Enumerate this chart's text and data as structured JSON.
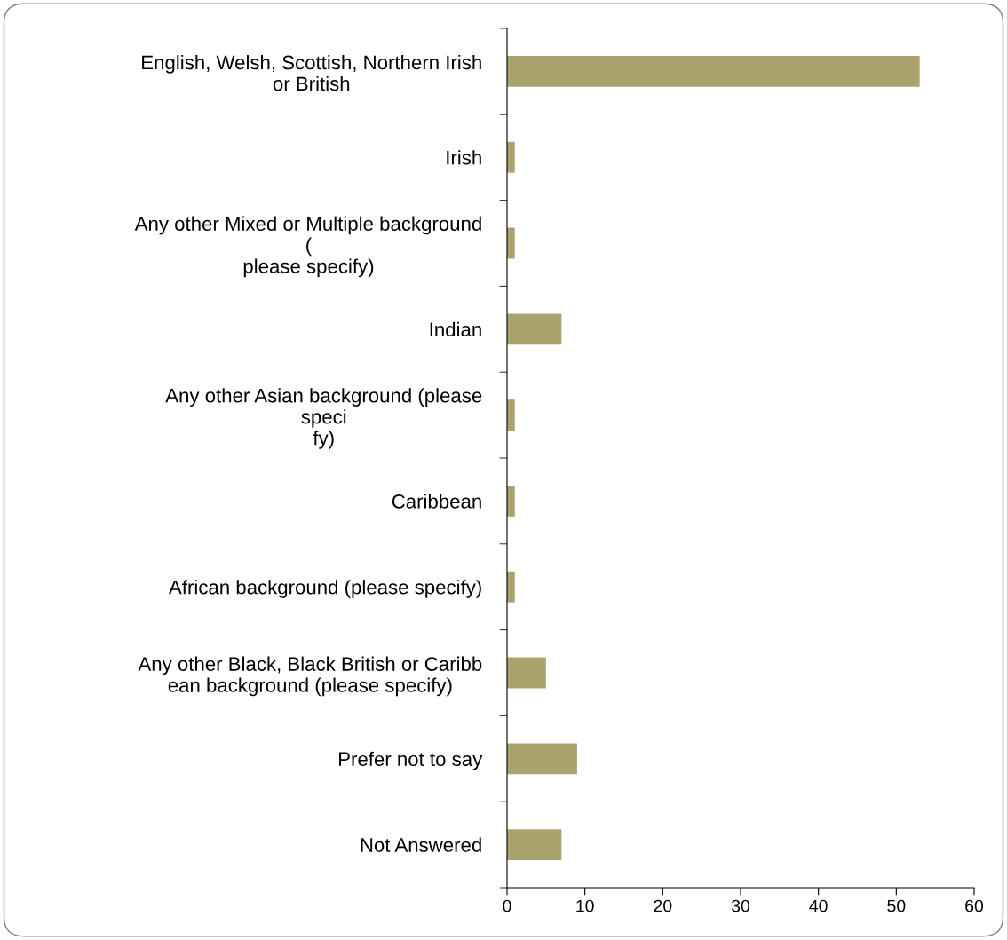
{
  "chart_data": {
    "type": "bar",
    "orientation": "horizontal",
    "categories": [
      "English, Welsh, Scottish, Northern Irish\nor British",
      "Irish",
      "Any other Mixed or Multiple background\n(\nplease specify)",
      "Indian",
      "Any other Asian background (please\nspeci\nfy)",
      "Caribbean",
      "African background (please specify)",
      "Any other Black, Black British or Caribb\nean background (please specify)",
      "Prefer not to say",
      "Not Answered"
    ],
    "values": [
      53,
      1,
      1,
      7,
      1,
      1,
      1,
      5,
      9,
      7
    ],
    "color": "#aaa36e",
    "xlim": [
      0,
      60
    ],
    "xticks": [
      0,
      10,
      20,
      30,
      40,
      50,
      60
    ],
    "grid": false
  }
}
